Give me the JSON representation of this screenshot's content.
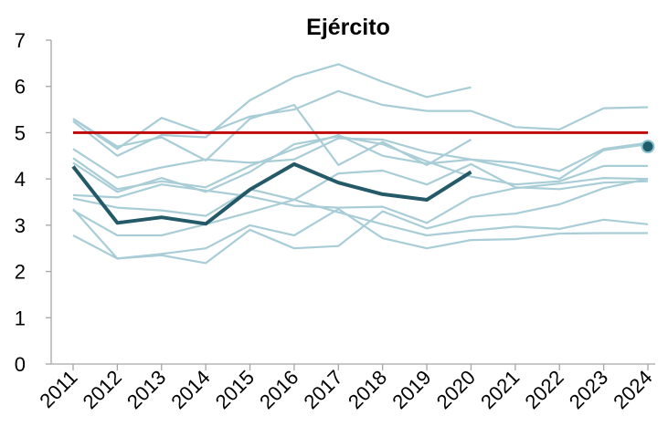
{
  "chart_data": {
    "type": "line",
    "title": "Ejército",
    "xlabel": "",
    "ylabel": "",
    "x": [
      "2011",
      "2012",
      "2013",
      "2014",
      "2015",
      "2016",
      "2017",
      "2018",
      "2019",
      "2020",
      "2021",
      "2022",
      "2023",
      "2024"
    ],
    "ylim": [
      0,
      7
    ],
    "yticks": [
      "0",
      "1",
      "2",
      "3",
      "4",
      "5",
      "6",
      "7"
    ],
    "grid": false,
    "legend": "none",
    "reference_line": {
      "value": 5,
      "color": "#c00000"
    },
    "end_marker": {
      "x": "2024",
      "value": 4.7,
      "color": "#1f5c6b"
    },
    "highlight_color": "#245a68",
    "background_color": "#a8cdd6",
    "highlight_series": {
      "values": [
        4.27,
        3.05,
        3.17,
        3.03,
        3.77,
        4.32,
        3.92,
        3.67,
        3.55,
        4.15,
        null,
        null,
        null,
        null
      ]
    },
    "background_series": [
      {
        "values": [
          5.3,
          4.7,
          4.9,
          4.4,
          5.3,
          5.6,
          4.3,
          4.8,
          4.3,
          4.85,
          null,
          null,
          null,
          null
        ]
      },
      {
        "values": [
          5.25,
          4.5,
          4.95,
          4.9,
          5.7,
          6.2,
          6.48,
          6.1,
          5.77,
          5.98,
          null,
          null,
          null,
          null
        ]
      },
      {
        "values": [
          5.3,
          4.65,
          5.32,
          4.98,
          5.35,
          5.5,
          5.9,
          5.6,
          5.47,
          5.47,
          5.12,
          5.07,
          5.53,
          5.55
        ]
      },
      {
        "values": [
          4.65,
          4.03,
          4.25,
          4.42,
          4.35,
          4.42,
          4.88,
          4.85,
          4.58,
          4.42,
          4.35,
          4.17,
          4.65,
          4.78
        ]
      },
      {
        "values": [
          4.45,
          3.78,
          3.95,
          3.82,
          4.28,
          4.65,
          4.95,
          4.5,
          4.33,
          4.42,
          4.22,
          4.0,
          4.62,
          4.75
        ]
      },
      {
        "values": [
          4.35,
          3.72,
          4.02,
          3.72,
          4.15,
          4.75,
          4.92,
          4.75,
          4.38,
          4.05,
          3.88,
          3.95,
          4.28,
          4.28
        ]
      },
      {
        "values": [
          3.58,
          3.38,
          3.32,
          3.2,
          3.78,
          3.55,
          4.12,
          4.18,
          3.88,
          4.32,
          3.82,
          3.78,
          3.92,
          3.95
        ]
      },
      {
        "values": [
          3.65,
          3.6,
          3.88,
          3.75,
          3.62,
          3.42,
          3.38,
          3.4,
          3.05,
          3.6,
          3.8,
          3.9,
          4.02,
          4.0
        ]
      },
      {
        "values": [
          3.32,
          2.78,
          2.78,
          3.02,
          3.28,
          3.55,
          3.28,
          3.02,
          2.78,
          2.88,
          2.97,
          2.92,
          3.12,
          3.02
        ]
      },
      {
        "values": [
          3.35,
          2.28,
          2.38,
          2.5,
          3.0,
          2.78,
          3.35,
          2.72,
          2.5,
          2.68,
          2.7,
          2.82,
          2.83,
          2.83
        ]
      },
      {
        "values": [
          2.78,
          2.28,
          2.35,
          2.18,
          2.9,
          2.5,
          2.55,
          3.3,
          2.93,
          3.18,
          3.25,
          3.45,
          3.8,
          4.0
        ]
      }
    ]
  }
}
